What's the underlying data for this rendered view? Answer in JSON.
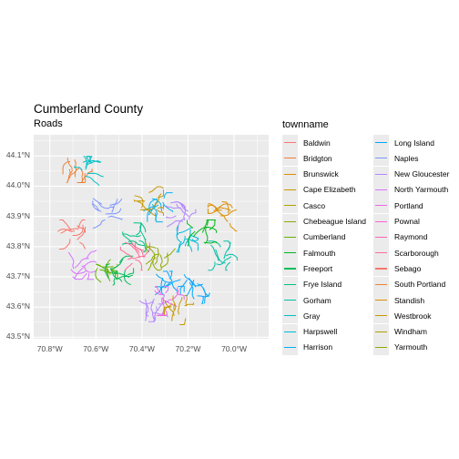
{
  "title": "Cumberland County",
  "subtitle": "Roads",
  "axes": {
    "y_ticks": [
      "44.1°N",
      "44.0°N",
      "43.9°N",
      "43.8°N",
      "43.7°N",
      "43.6°N",
      "43.5°N"
    ],
    "x_ticks": [
      "70.8°W",
      "70.6°W",
      "70.4°W",
      "70.2°W",
      "70.0°W"
    ],
    "xlim": [
      -70.87,
      -69.85
    ],
    "ylim": [
      43.495,
      44.17
    ]
  },
  "colors": {
    "panel_bg": "#ebebeb",
    "grid": "#ffffff"
  },
  "legend": {
    "title": "townname",
    "items": [
      {
        "name": "Baldwin",
        "color": "#F8766D"
      },
      {
        "name": "Bridgton",
        "color": "#EC8239"
      },
      {
        "name": "Brunswick",
        "color": "#DB8E00"
      },
      {
        "name": "Cape Elizabeth",
        "color": "#C79800"
      },
      {
        "name": "Casco",
        "color": "#AEA200"
      },
      {
        "name": "Chebeague Island",
        "color": "#8FAA00"
      },
      {
        "name": "Cumberland",
        "color": "#64B200"
      },
      {
        "name": "Falmouth",
        "color": "#00B81B"
      },
      {
        "name": "Freeport",
        "color": "#00BD5C"
      },
      {
        "name": "Frye Island",
        "color": "#00C085"
      },
      {
        "name": "Gorham",
        "color": "#00C1A7"
      },
      {
        "name": "Gray",
        "color": "#00BFC4"
      },
      {
        "name": "Harpswell",
        "color": "#00BADE"
      },
      {
        "name": "Harrison",
        "color": "#00B2F3"
      },
      {
        "name": "Long Island",
        "color": "#00A6FF"
      },
      {
        "name": "Naples",
        "color": "#7C96FF"
      },
      {
        "name": "New Gloucester",
        "color": "#B385FF"
      },
      {
        "name": "North Yarmouth",
        "color": "#D874FD"
      },
      {
        "name": "Portland",
        "color": "#EF67EB"
      },
      {
        "name": "Pownal",
        "color": "#FD61D3"
      },
      {
        "name": "Raymond",
        "color": "#FF63B6"
      },
      {
        "name": "Scarborough",
        "color": "#FF6B94"
      },
      {
        "name": "Sebago",
        "color": "#F8766D"
      },
      {
        "name": "South Portland",
        "color": "#EC8239"
      },
      {
        "name": "Standish",
        "color": "#DB8E00"
      },
      {
        "name": "Westbrook",
        "color": "#C79800"
      },
      {
        "name": "Windham",
        "color": "#AEA200"
      },
      {
        "name": "Yarmouth",
        "color": "#8FAA00"
      }
    ]
  },
  "map_regions": [
    {
      "color": "#EC8239",
      "center": [
        -70.68,
        44.06
      ]
    },
    {
      "color": "#00BFC4",
      "center": [
        -70.63,
        44.05
      ]
    },
    {
      "color": "#F8766D",
      "center": [
        -70.71,
        43.84
      ]
    },
    {
      "color": "#7C96FF",
      "center": [
        -70.55,
        43.91
      ]
    },
    {
      "color": "#D874FD",
      "center": [
        -70.66,
        43.74
      ]
    },
    {
      "color": "#64B200",
      "center": [
        -70.57,
        43.73
      ]
    },
    {
      "color": "#00BD5C",
      "center": [
        -70.5,
        43.72
      ]
    },
    {
      "color": "#00C085",
      "center": [
        -70.42,
        43.83
      ]
    },
    {
      "color": "#FF6B94",
      "center": [
        -70.43,
        43.77
      ]
    },
    {
      "color": "#00B2F3",
      "center": [
        -70.33,
        43.93
      ]
    },
    {
      "color": "#B385FF",
      "center": [
        -70.23,
        43.9
      ]
    },
    {
      "color": "#00BADE",
      "center": [
        -70.22,
        43.83
      ]
    },
    {
      "color": "#8FAA00",
      "center": [
        -70.32,
        43.77
      ]
    },
    {
      "color": "#00A6FF",
      "center": [
        -70.28,
        43.67
      ]
    },
    {
      "color": "#C79800",
      "center": [
        -70.37,
        43.95
      ]
    },
    {
      "color": "#DB8E00",
      "center": [
        -70.05,
        43.9
      ]
    },
    {
      "color": "#00C1A7",
      "center": [
        -70.05,
        43.77
      ]
    },
    {
      "color": "#B385FF",
      "center": [
        -70.35,
        43.6
      ]
    },
    {
      "color": "#EF67EB",
      "center": [
        -70.28,
        43.62
      ]
    },
    {
      "color": "#C79800",
      "center": [
        -70.24,
        43.59
      ]
    },
    {
      "color": "#00B81B",
      "center": [
        -70.14,
        43.84
      ]
    },
    {
      "color": "#00A6FF",
      "center": [
        -70.17,
        43.66
      ]
    }
  ]
}
